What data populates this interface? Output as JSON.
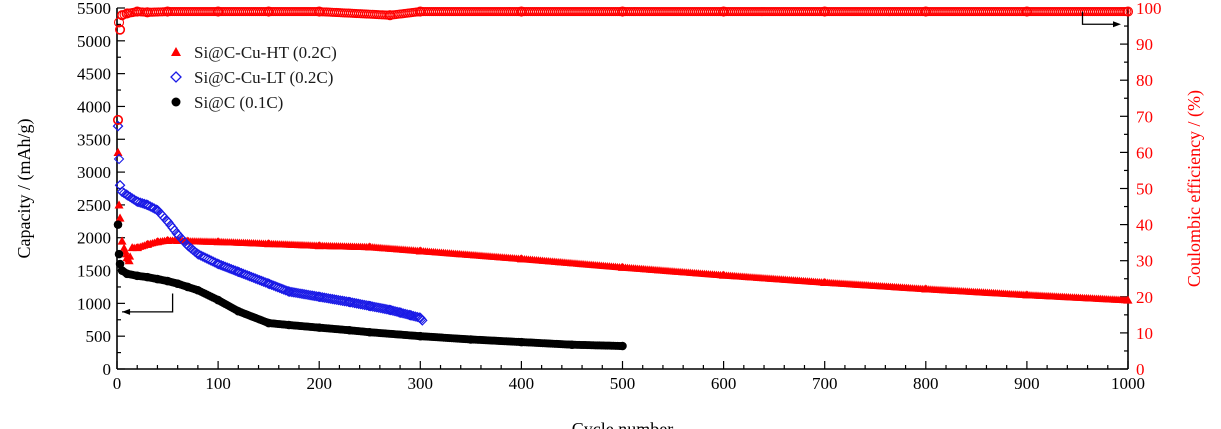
{
  "chart_data": {
    "type": "scatter",
    "xlabel": "Cycle number",
    "ylabel_left": "Capacity / (mAh/g)",
    "ylabel_right": "Coulombic efficiency / (%)",
    "xlim": [
      0,
      1000
    ],
    "ylim_left": [
      0,
      5500
    ],
    "ylim_right": [
      0,
      100
    ],
    "x_ticks": [
      "0",
      "100",
      "200",
      "300",
      "400",
      "500",
      "600",
      "700",
      "800",
      "900",
      "1000"
    ],
    "y_left_ticks": [
      "0",
      "500",
      "1000",
      "1500",
      "2000",
      "2500",
      "3000",
      "3500",
      "4000",
      "4500",
      "5000",
      "5500"
    ],
    "y_right_ticks": [
      "0",
      "10",
      "20",
      "30",
      "40",
      "50",
      "60",
      "70",
      "80",
      "90",
      "100"
    ],
    "grid": false,
    "legend_position": "top-left",
    "series": [
      {
        "name": "Si@C-Cu-HT (0.2C)",
        "marker": "triangle",
        "color": "#ff0000",
        "axis": "left",
        "x": [
          1,
          2,
          3,
          5,
          8,
          10,
          12,
          15,
          20,
          30,
          40,
          50,
          60,
          70,
          100,
          150,
          200,
          250,
          300,
          400,
          500,
          600,
          700,
          800,
          900,
          1000
        ],
        "values": [
          3300,
          2500,
          2300,
          1950,
          1800,
          1700,
          1650,
          1850,
          1850,
          1900,
          1940,
          1960,
          1960,
          1950,
          1940,
          1910,
          1880,
          1860,
          1800,
          1680,
          1550,
          1430,
          1320,
          1220,
          1130,
          1050
        ]
      },
      {
        "name": "Si@C-Cu-LT (0.2C)",
        "marker": "diamond-open",
        "color": "#1a1ae6",
        "axis": "left",
        "x": [
          1,
          2,
          3,
          5,
          10,
          20,
          30,
          40,
          50,
          60,
          70,
          80,
          100,
          120,
          150,
          170,
          200,
          230,
          250,
          270,
          280,
          290,
          300,
          302
        ],
        "values": [
          3700,
          3200,
          2800,
          2700,
          2650,
          2550,
          2500,
          2420,
          2250,
          2050,
          1880,
          1750,
          1600,
          1480,
          1300,
          1180,
          1100,
          1020,
          960,
          900,
          860,
          820,
          780,
          740
        ]
      },
      {
        "name": "Si@C (0.1C)",
        "marker": "circle",
        "color": "#000000",
        "axis": "left",
        "x": [
          1,
          2,
          3,
          5,
          10,
          20,
          30,
          40,
          50,
          60,
          70,
          80,
          100,
          120,
          150,
          170,
          200,
          230,
          250,
          300,
          350,
          400,
          450,
          500
        ],
        "values": [
          2200,
          1750,
          1600,
          1500,
          1450,
          1420,
          1400,
          1370,
          1340,
          1300,
          1250,
          1200,
          1050,
          880,
          700,
          670,
          630,
          590,
          560,
          500,
          450,
          410,
          370,
          350
        ]
      },
      {
        "name": "Coulombic efficiency",
        "marker": "circle-open",
        "color": "#ff0000",
        "axis": "right",
        "x": [
          1,
          2,
          3,
          5,
          10,
          20,
          30,
          50,
          100,
          150,
          200,
          270,
          300,
          400,
          500,
          600,
          700,
          800,
          900,
          1000
        ],
        "values": [
          69,
          96,
          94,
          98,
          98.5,
          99,
          98.8,
          99,
          99,
          99,
          99,
          98,
          99,
          99,
          99,
          99,
          99,
          99,
          99,
          99
        ]
      }
    ],
    "annotations": [
      {
        "label": "arrow-left",
        "x": [
          55,
          5
        ],
        "y_left": [
          0.5,
          0.5
        ]
      },
      {
        "label": "arrow-right",
        "x": [
          955,
          1000
        ],
        "y_right": [
          95.5,
          95.5
        ]
      }
    ]
  }
}
